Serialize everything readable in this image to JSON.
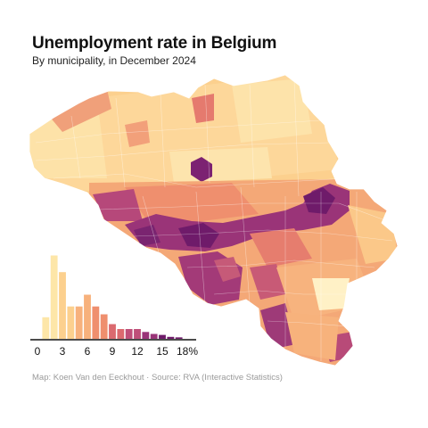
{
  "header": {
    "title": "Unemployment rate in Belgium",
    "subtitle": "By municipality, in December 2024"
  },
  "footer": {
    "credit": "Map: Koen Van den Eeckhout · Source: RVA (Interactive Statistics)"
  },
  "colors": {
    "scale": [
      "#fde6a8",
      "#fcd08e",
      "#f7b17c",
      "#ef8f6e",
      "#db6a6f",
      "#bf4f79",
      "#9a3478",
      "#6f1b6a"
    ],
    "low_region": "#fff1c6"
  },
  "chart_data": {
    "type": "histogram",
    "unit": "%",
    "bin_width": 1,
    "bins": [
      {
        "x": 1,
        "height": 0.22
      },
      {
        "x": 2,
        "height": 0.85
      },
      {
        "x": 3,
        "height": 0.68
      },
      {
        "x": 4,
        "height": 0.33
      },
      {
        "x": 5,
        "height": 0.33
      },
      {
        "x": 6,
        "height": 0.45
      },
      {
        "x": 7,
        "height": 0.33
      },
      {
        "x": 8,
        "height": 0.25
      },
      {
        "x": 9,
        "height": 0.15
      },
      {
        "x": 10,
        "height": 0.1
      },
      {
        "x": 11,
        "height": 0.1
      },
      {
        "x": 12,
        "height": 0.1
      },
      {
        "x": 13,
        "height": 0.07
      },
      {
        "x": 14,
        "height": 0.05
      },
      {
        "x": 15,
        "height": 0.04
      },
      {
        "x": 16,
        "height": 0.02
      },
      {
        "x": 17,
        "height": 0.015
      }
    ],
    "xticks": [
      "0",
      "3",
      "6",
      "9",
      "12",
      "15",
      "18%"
    ],
    "xtick_values": [
      0,
      3,
      6,
      9,
      12,
      15,
      18
    ],
    "xlim": [
      0,
      18
    ]
  }
}
